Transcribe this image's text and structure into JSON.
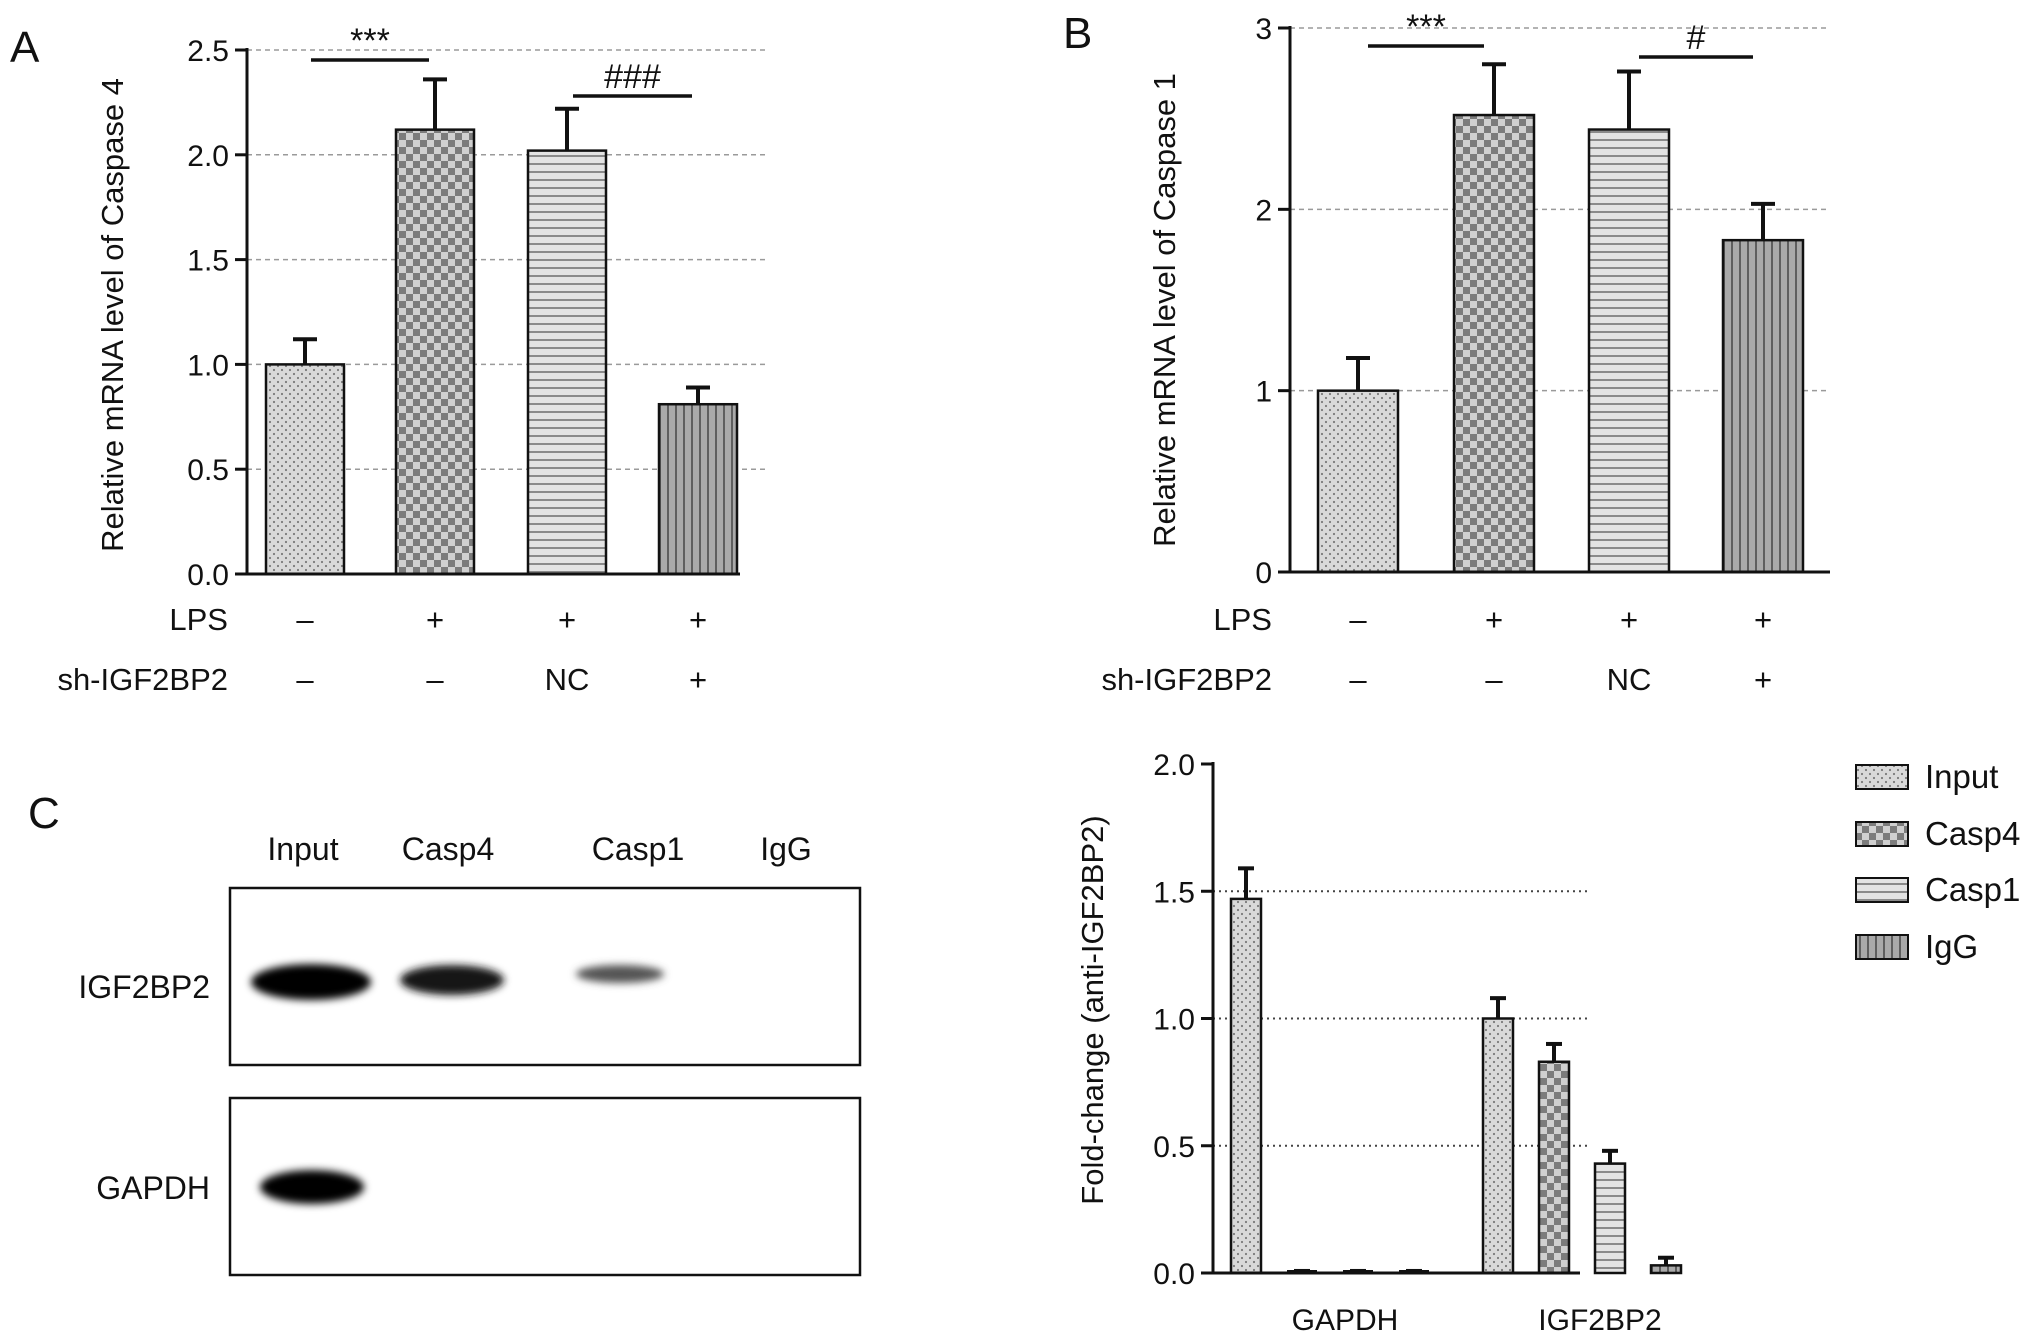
{
  "panels": {
    "A": {
      "letter": "A",
      "chart_data": {
        "type": "bar",
        "ylabel": "Relative mRNA level of Caspase 4",
        "ylim": [
          0,
          2.5
        ],
        "yticks": [
          "0.0",
          "0.5",
          "1.0",
          "1.5",
          "2.0",
          "2.5"
        ],
        "grid": "dashed horizontal",
        "values": [
          1.0,
          2.12,
          2.02,
          0.81
        ],
        "errors": [
          0.12,
          0.24,
          0.2,
          0.08
        ],
        "patterns": [
          "dots",
          "checker",
          "hlines",
          "vlines"
        ],
        "conditions": [
          {
            "label": "LPS",
            "values": [
              "–",
              "+",
              "+",
              "+"
            ]
          },
          {
            "label": "sh-IGF2BP2",
            "values": [
              "–",
              "–",
              "NC",
              "+"
            ]
          }
        ],
        "significance": [
          {
            "from": 0,
            "to": 1,
            "label": "***"
          },
          {
            "from": 2,
            "to": 3,
            "label": "###"
          }
        ]
      }
    },
    "B": {
      "letter": "B",
      "chart_data": {
        "type": "bar",
        "ylabel": "Relative mRNA level of Caspase 1",
        "ylim": [
          0,
          3
        ],
        "yticks": [
          "0",
          "1",
          "2",
          "3"
        ],
        "grid": "dashed horizontal",
        "values": [
          1.0,
          2.52,
          2.44,
          1.83
        ],
        "errors": [
          0.18,
          0.28,
          0.32,
          0.2
        ],
        "patterns": [
          "dots",
          "checker",
          "hlines",
          "vlines"
        ],
        "conditions": [
          {
            "label": "LPS",
            "values": [
              "–",
              "+",
              "+",
              "+"
            ]
          },
          {
            "label": "sh-IGF2BP2",
            "values": [
              "–",
              "–",
              "NC",
              "+"
            ]
          }
        ],
        "significance": [
          {
            "from": 0,
            "to": 1,
            "label": "***"
          },
          {
            "from": 2,
            "to": 3,
            "label": "#"
          }
        ]
      }
    },
    "C": {
      "letter": "C",
      "blot": {
        "lanes": [
          "Input",
          "Casp4",
          "Casp1",
          "IgG"
        ],
        "rows": [
          {
            "label": "IGF2BP2",
            "band_intensity": [
              1.0,
              0.85,
              0.45,
              0.0
            ]
          },
          {
            "label": "GAPDH",
            "band_intensity": [
              1.0,
              0.0,
              0.0,
              0.0
            ]
          }
        ]
      },
      "chart_data": {
        "type": "bar",
        "ylabel": "Fold-change (anti-IGF2BP2)",
        "ylim": [
          0,
          2.0
        ],
        "yticks": [
          "0.0",
          "0.5",
          "1.0",
          "1.5",
          "2.0"
        ],
        "grid": "dotted horizontal",
        "categories": [
          "GAPDH",
          "IGF2BP2"
        ],
        "series": [
          {
            "name": "Input",
            "pattern": "dots",
            "values": [
              1.47,
              1.0
            ],
            "errors": [
              0.12,
              0.08
            ]
          },
          {
            "name": "Casp4",
            "pattern": "checker",
            "values": [
              0.005,
              0.83
            ],
            "errors": [
              0.003,
              0.07
            ]
          },
          {
            "name": "Casp1",
            "pattern": "hlines",
            "values": [
              0.005,
              0.43
            ],
            "errors": [
              0.003,
              0.05
            ]
          },
          {
            "name": "IgG",
            "pattern": "vlines",
            "values": [
              0.005,
              0.03
            ],
            "errors": [
              0.003,
              0.03
            ]
          }
        ],
        "legend": "right"
      }
    }
  }
}
